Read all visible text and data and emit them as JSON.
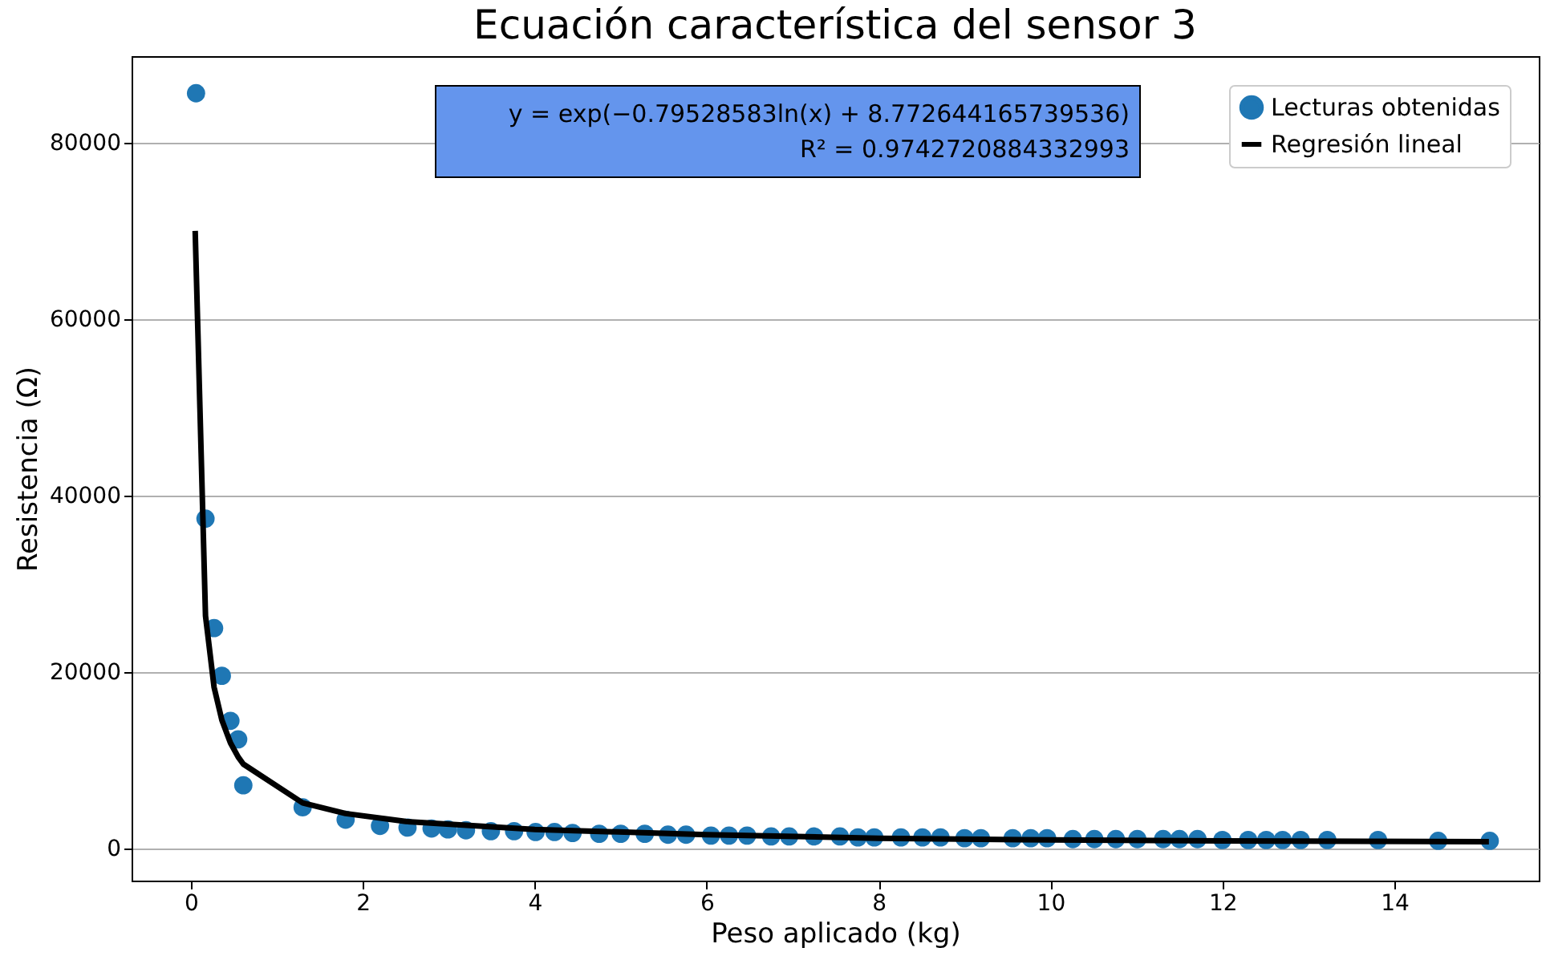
{
  "chart_data": {
    "type": "scatter",
    "title": "Ecuación característica del sensor 3",
    "xlabel": "Peso aplicado (kg)",
    "ylabel": "Resistencia (Ω)",
    "annotations": [
      "y = exp(−0.79528583ln(x) + 8.772644165739536)\nR² = 0.9742720884332993"
    ],
    "series": [
      {
        "name": "Lecturas obtenidas",
        "color": "#1f77b4",
        "marker": "circle",
        "x": [
          0.06,
          0.17,
          0.27,
          0.36,
          0.46,
          0.55,
          0.61,
          1.3,
          1.8,
          2.2,
          2.52,
          2.8,
          2.99,
          3.2,
          3.49,
          3.76,
          4.01,
          4.23,
          4.44,
          4.75,
          5.0,
          5.28,
          5.55,
          5.76,
          6.05,
          6.26,
          6.47,
          6.75,
          6.96,
          7.25,
          7.55,
          7.76,
          7.95,
          8.26,
          8.51,
          8.72,
          9.0,
          9.19,
          9.56,
          9.77,
          9.96,
          10.26,
          10.51,
          10.76,
          11.01,
          11.31,
          11.5,
          11.71,
          12.0,
          12.3,
          12.51,
          12.7,
          12.91,
          13.22,
          13.81,
          14.51,
          15.11
        ],
        "values": [
          85600,
          37400,
          25000,
          19600,
          14500,
          12400,
          7200,
          4700,
          3300,
          2600,
          2400,
          2300,
          2200,
          2100,
          2000,
          2000,
          1900,
          1900,
          1800,
          1700,
          1700,
          1700,
          1600,
          1600,
          1500,
          1500,
          1500,
          1400,
          1400,
          1400,
          1400,
          1300,
          1300,
          1300,
          1300,
          1300,
          1200,
          1200,
          1200,
          1200,
          1200,
          1100,
          1100,
          1100,
          1100,
          1100,
          1100,
          1100,
          1000,
          1000,
          1000,
          1000,
          1000,
          1000,
          1000,
          900,
          900
        ]
      },
      {
        "name": "Regresión lineal",
        "type": "line",
        "color": "#000000",
        "line_style": "solid",
        "x": [
          0.05,
          0.17,
          0.27,
          0.36,
          0.46,
          0.55,
          0.61,
          1.3,
          1.8,
          2.5,
          4,
          6,
          8,
          10,
          12,
          15.1
        ],
        "values": [
          70000,
          26400,
          18300,
          14600,
          12000,
          10400,
          9600,
          5200,
          4000,
          3100,
          2200,
          1600,
          1200,
          1000,
          900,
          800
        ]
      }
    ],
    "xlim": [
      -0.69,
      15.68
    ],
    "xticks": [
      0,
      2,
      4,
      6,
      8,
      10,
      12,
      14
    ],
    "ylim": [
      -3600,
      89800
    ],
    "yticks": [
      0,
      20000,
      40000,
      60000,
      80000
    ],
    "grid": "y",
    "legend": "top right"
  }
}
